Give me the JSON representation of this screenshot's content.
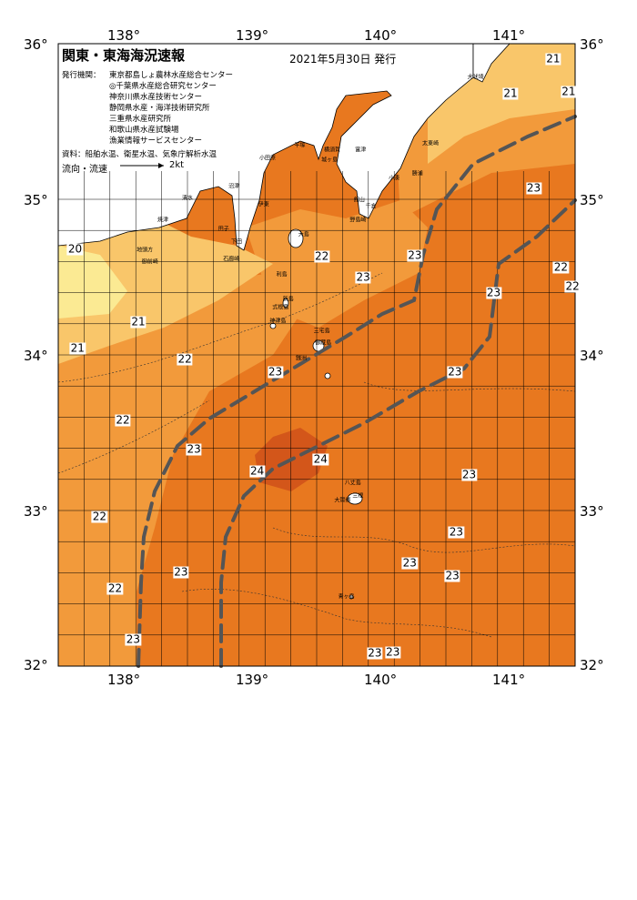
{
  "title": "関東・東海海況速報",
  "date": "2021年5月30日 発行",
  "publisher_label": "発行機関：",
  "publishers": [
    "東京都島しょ農林水産総合センター",
    "◎千葉県水産総合研究センター",
    "神奈川県水産技術センター",
    "静岡県水産・海洋技術研究所",
    "三重県水産研究所",
    "和歌山県水産試験場",
    "漁業情報サービスセンター"
  ],
  "sources": "資料：船舶水温、衛星水温、気象庁解析水温",
  "legend": {
    "label": "流向・流速",
    "speed": "2kt"
  },
  "axes": {
    "lon_top": [
      "138°",
      "139°",
      "140°",
      "141°"
    ],
    "lon_bottom": [
      "138°",
      "139°",
      "140°",
      "141°"
    ],
    "lat_left": [
      "36°",
      "35°",
      "34°",
      "33°",
      "32°"
    ],
    "lat_right": [
      "36°",
      "35°",
      "34°",
      "33°",
      "32°"
    ]
  },
  "colors": {
    "t20": "#fbea93",
    "t21": "#f9c66a",
    "t22": "#f29a3b",
    "t23": "#e8781f",
    "t24": "#d3561a",
    "land": "#ffffff",
    "grid": "#000000",
    "current": "#555555"
  },
  "temp_labels": [
    {
      "t": "21",
      "lon": 141.33,
      "lat": 35.9
    },
    {
      "t": "21",
      "lon": 141.0,
      "lat": 35.68
    },
    {
      "t": "21",
      "lon": 141.45,
      "lat": 35.69
    },
    {
      "t": "23",
      "lon": 141.18,
      "lat": 35.07
    },
    {
      "t": "23",
      "lon": 140.26,
      "lat": 34.64
    },
    {
      "t": "22",
      "lon": 141.39,
      "lat": 34.56
    },
    {
      "t": "22",
      "lon": 141.48,
      "lat": 34.44
    },
    {
      "t": "22",
      "lon": 139.54,
      "lat": 34.63
    },
    {
      "t": "23",
      "lon": 139.86,
      "lat": 34.5
    },
    {
      "t": "23",
      "lon": 140.87,
      "lat": 34.4
    },
    {
      "t": "20",
      "lon": 37.63,
      "lat": 34.68
    },
    {
      "t": "21",
      "lon": 138.12,
      "lat": 34.21
    },
    {
      "t": "21",
      "lon": 37.65,
      "lat": 34.04
    },
    {
      "t": "22",
      "lon": 138.48,
      "lat": 33.97
    },
    {
      "t": "23",
      "lon": 139.18,
      "lat": 33.89
    },
    {
      "t": "23",
      "lon": 140.57,
      "lat": 33.89
    },
    {
      "t": "22",
      "lon": 138.0,
      "lat": 33.58
    },
    {
      "t": "23",
      "lon": 138.55,
      "lat": 33.39
    },
    {
      "t": "24",
      "lon": 139.04,
      "lat": 33.25
    },
    {
      "t": "24",
      "lon": 139.53,
      "lat": 33.33
    },
    {
      "t": "23",
      "lon": 140.68,
      "lat": 33.23
    },
    {
      "t": "22",
      "lon": 137.82,
      "lat": 32.96
    },
    {
      "t": "23",
      "lon": 140.58,
      "lat": 32.86
    },
    {
      "t": "23",
      "lon": 138.45,
      "lat": 32.6
    },
    {
      "t": "23",
      "lon": 140.22,
      "lat": 32.66
    },
    {
      "t": "23",
      "lon": 140.55,
      "lat": 32.58
    },
    {
      "t": "22",
      "lon": 137.94,
      "lat": 32.5
    },
    {
      "t": "23",
      "lon": 138.08,
      "lat": 32.17
    },
    {
      "t": "23",
      "lon": 139.95,
      "lat": 32.08
    },
    {
      "t": "23",
      "lon": 140.09,
      "lat": 32.09
    }
  ],
  "place_names": [
    {
      "n": "犬吠埼",
      "lon": 140.73,
      "lat": 35.79
    },
    {
      "n": "太東崎",
      "lon": 140.38,
      "lat": 35.36
    },
    {
      "n": "勝浦",
      "lon": 140.28,
      "lat": 35.17
    },
    {
      "n": "小湊",
      "lon": 140.1,
      "lat": 35.14
    },
    {
      "n": "富津",
      "lon": 139.84,
      "lat": 35.32
    },
    {
      "n": "館山",
      "lon": 139.83,
      "lat": 35.0
    },
    {
      "n": "千倉",
      "lon": 139.92,
      "lat": 34.96
    },
    {
      "n": "野島崎",
      "lon": 139.82,
      "lat": 34.87
    },
    {
      "n": "平塚",
      "lon": 139.37,
      "lat": 35.35
    },
    {
      "n": "横須賀",
      "lon": 139.62,
      "lat": 35.32
    },
    {
      "n": "城ヶ島",
      "lon": 139.6,
      "lat": 35.26
    },
    {
      "n": "小田原",
      "lon": 139.12,
      "lat": 35.27
    },
    {
      "n": "伊東",
      "lon": 139.09,
      "lat": 34.97
    },
    {
      "n": "石廊崎",
      "lon": 138.84,
      "lat": 34.62
    },
    {
      "n": "大島",
      "lon": 139.4,
      "lat": 34.78
    },
    {
      "n": "利島",
      "lon": 139.23,
      "lat": 34.52
    },
    {
      "n": "新島",
      "lon": 139.28,
      "lat": 34.36
    },
    {
      "n": "式根島",
      "lon": 139.22,
      "lat": 34.31
    },
    {
      "n": "神津島",
      "lon": 139.2,
      "lat": 34.22
    },
    {
      "n": "三宅島",
      "lon": 139.54,
      "lat": 34.16
    },
    {
      "n": "御蔵島",
      "lon": 139.55,
      "lat": 34.08
    },
    {
      "n": "銭洲",
      "lon": 139.38,
      "lat": 33.98
    },
    {
      "n": "八丈島",
      "lon": 139.78,
      "lat": 33.18
    },
    {
      "n": "三根",
      "lon": 139.82,
      "lat": 33.1
    },
    {
      "n": "大賀郷",
      "lon": 139.7,
      "lat": 33.07
    },
    {
      "n": "青ヶ島",
      "lon": 139.73,
      "lat": 32.45
    },
    {
      "n": "清水",
      "lon": 138.5,
      "lat": 35.01
    },
    {
      "n": "焼津",
      "lon": 138.31,
      "lat": 34.87
    },
    {
      "n": "地頭方",
      "lon": 138.17,
      "lat": 34.68
    },
    {
      "n": "御前崎",
      "lon": 138.21,
      "lat": 34.6
    },
    {
      "n": "沼津",
      "lon": 138.86,
      "lat": 35.09
    },
    {
      "n": "田子",
      "lon": 138.78,
      "lat": 34.81
    },
    {
      "n": "下田",
      "lon": 138.88,
      "lat": 34.73
    }
  ]
}
